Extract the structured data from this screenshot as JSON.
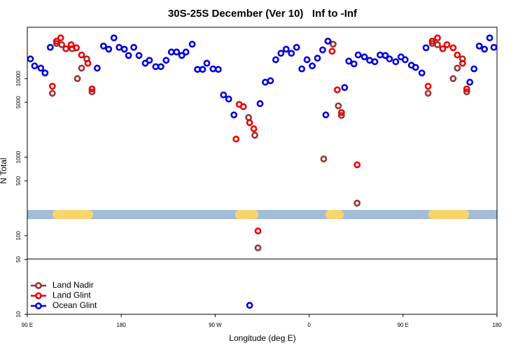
{
  "chart_data": {
    "type": "scatter",
    "title": "30S-25S December (Ver 10)   Inf to -Inf",
    "x_label": "Longitude (deg E)",
    "y_label": "N Total",
    "log_y": true,
    "xlim": [
      90,
      540
    ],
    "xticks": [
      {
        "value": 90,
        "label": "90 E"
      },
      180,
      {
        "value": 270,
        "label": "90 W"
      },
      {
        "value": 360,
        "label": "0"
      },
      {
        "value": 450,
        "label": "90 E"
      },
      {
        "value": 540,
        "label": "180"
      }
    ],
    "ylim": [
      10,
      45000
    ],
    "yticks": [
      10,
      50,
      100,
      500,
      1000,
      5000,
      10000
    ],
    "legend": "bottom-left",
    "series": [
      {
        "name": "Land Nadir",
        "color": "#993333",
        "x": [
          114,
          118,
          123,
          133,
          138,
          142,
          147,
          152,
          302,
          308,
          311,
          374,
          383,
          388,
          391,
          406,
          474,
          478,
          483,
          498,
          502,
          507,
          511
        ],
        "values": [
          6500,
          28000,
          27000,
          24000,
          10000,
          13600,
          17800,
          6800,
          3200,
          1900,
          70,
          950,
          27400,
          4500,
          3400,
          260,
          6500,
          28000,
          27000,
          10000,
          13600,
          17800,
          6800
        ]
      },
      {
        "name": "Land Glint",
        "color": "#ee0000",
        "x": [
          114,
          118,
          122,
          127,
          132,
          137,
          142,
          148,
          152,
          290,
          293,
          297,
          303,
          307,
          311,
          378,
          382,
          387,
          391,
          406,
          474,
          478,
          483,
          488,
          492,
          498,
          502,
          507,
          511
        ],
        "values": [
          8000,
          30000,
          33000,
          24000,
          27000,
          24700,
          20000,
          15700,
          7400,
          1700,
          4700,
          4400,
          2750,
          2300,
          115,
          30000,
          22300,
          7200,
          3700,
          800,
          8000,
          30000,
          33000,
          24000,
          27000,
          24700,
          20000,
          15700,
          7400
        ]
      },
      {
        "name": "Ocean Glint",
        "color": "#0000dd",
        "x": [
          93,
          97,
          103,
          107,
          112,
          157,
          163,
          168,
          173,
          178,
          183,
          187,
          192,
          197,
          203,
          207,
          213,
          218,
          223,
          228,
          233,
          238,
          242,
          248,
          253,
          258,
          262,
          268,
          273,
          278,
          283,
          288,
          303,
          313,
          318,
          323,
          328,
          333,
          338,
          343,
          348,
          353,
          358,
          363,
          368,
          373,
          376,
          378,
          394,
          398,
          403,
          407,
          413,
          418,
          423,
          428,
          433,
          437,
          443,
          448,
          452,
          458,
          462,
          468,
          472,
          514,
          518,
          523,
          528,
          533,
          537
        ],
        "values": [
          17800,
          14500,
          13600,
          11800,
          25000,
          13600,
          26000,
          23700,
          33000,
          25000,
          23700,
          19700,
          25000,
          19700,
          15700,
          17100,
          14200,
          14200,
          17100,
          21800,
          21800,
          19700,
          21800,
          27400,
          13100,
          13100,
          15700,
          13300,
          13100,
          6200,
          5500,
          3450,
          13,
          4800,
          9000,
          9400,
          17400,
          21000,
          23700,
          21000,
          25000,
          13300,
          17400,
          14500,
          18200,
          23200,
          3450,
          30000,
          7700,
          16700,
          15400,
          20000,
          18900,
          17100,
          16400,
          20000,
          19700,
          17800,
          16400,
          18900,
          17400,
          14800,
          13900,
          11800,
          24700,
          9000,
          13300,
          26000,
          23700,
          33000,
          25000
        ]
      }
    ]
  }
}
